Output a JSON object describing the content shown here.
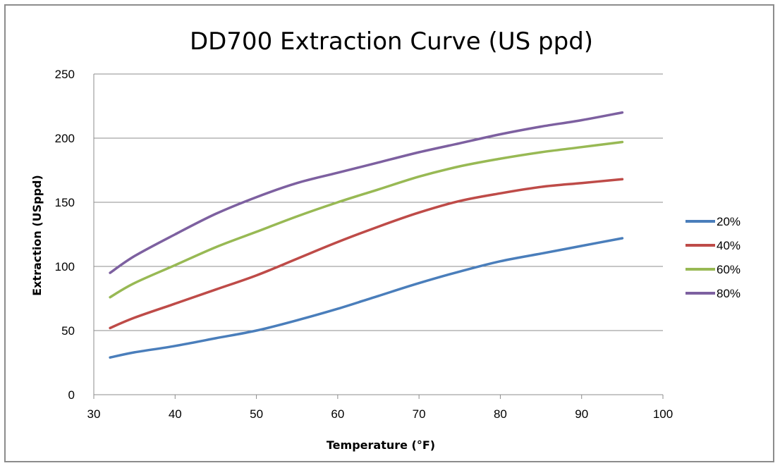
{
  "chart_data": {
    "type": "line",
    "title": "DD700 Extraction Curve (US ppd)",
    "xlabel": "Temperature (°F)",
    "ylabel": "Extraction (USppd)",
    "xlim": [
      30,
      100
    ],
    "ylim": [
      0,
      250
    ],
    "x_ticks": [
      30,
      40,
      50,
      60,
      70,
      80,
      90,
      100
    ],
    "y_ticks": [
      0,
      50,
      100,
      150,
      200,
      250
    ],
    "grid": "horizontal",
    "legend_position": "right",
    "x": [
      32,
      35,
      40,
      45,
      50,
      55,
      60,
      65,
      70,
      75,
      80,
      85,
      90,
      95
    ],
    "series": [
      {
        "name": "20%",
        "color": "#4a7ebb",
        "values": [
          29,
          33,
          38,
          44,
          50,
          58,
          67,
          77,
          87,
          96,
          104,
          110,
          116,
          122
        ]
      },
      {
        "name": "40%",
        "color": "#be4b48",
        "values": [
          52,
          60,
          71,
          82,
          93,
          106,
          119,
          131,
          142,
          151,
          157,
          162,
          165,
          168
        ]
      },
      {
        "name": "60%",
        "color": "#98b954",
        "values": [
          76,
          87,
          101,
          115,
          127,
          139,
          150,
          160,
          170,
          178,
          184,
          189,
          193,
          197
        ]
      },
      {
        "name": "80%",
        "color": "#7d60a0",
        "values": [
          95,
          108,
          125,
          141,
          154,
          165,
          173,
          181,
          189,
          196,
          203,
          209,
          214,
          220
        ]
      }
    ]
  }
}
